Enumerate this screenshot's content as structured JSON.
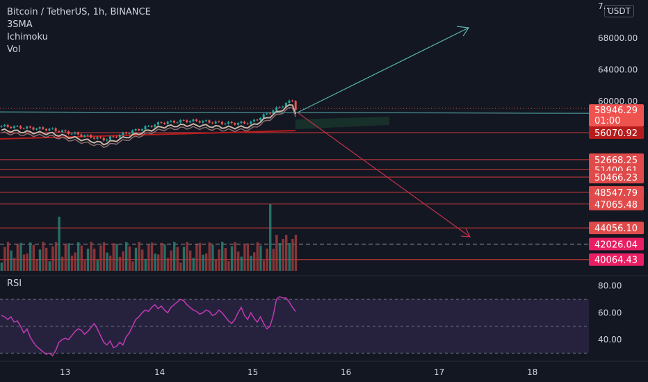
{
  "chart_data": {
    "type": "candlestick",
    "symbol": "Bitcoin / TetherUS, 1h, BINANCE",
    "indicators": [
      "3SMA",
      "Ichimoku",
      "Vol"
    ],
    "currency": "USDT",
    "price_axis_ticks": [
      "7…",
      "68000.00",
      "64000.00",
      "60000.00"
    ],
    "price_ylim": [
      38200,
      72800
    ],
    "current_price": "58946.29",
    "countdown": "01:00",
    "levels": [
      {
        "value": 56070.92,
        "label": "56070.92",
        "color": "#b71c1c"
      },
      {
        "value": 52668.25,
        "label": "52668.25",
        "color": "#e04a4a"
      },
      {
        "value": 51400.61,
        "label": "51400.61",
        "color": "#e04a4a"
      },
      {
        "value": 50466.23,
        "label": "50466.23",
        "color": "#e04a4a"
      },
      {
        "value": 48547.79,
        "label": "48547.79",
        "color": "#e04a4a"
      },
      {
        "value": 47065.48,
        "label": "47065.48",
        "color": "#e04a4a"
      },
      {
        "value": 44056.1,
        "label": "44056.10",
        "color": "#e04a4a"
      },
      {
        "value": 42026.04,
        "label": "42026.04",
        "color": "#e91e63"
      },
      {
        "value": 40064.43,
        "label": "40064.43",
        "color": "#e91e63"
      }
    ],
    "x_axis_ticks": [
      "13",
      "14",
      "15",
      "16",
      "17",
      "18"
    ],
    "rsi": {
      "title": "RSI",
      "ticks": [
        "80.00",
        "60.00",
        "40.00"
      ],
      "ylim": [
        25,
        86
      ],
      "band": [
        30,
        70
      ],
      "values": [
        58,
        57,
        55,
        57,
        53,
        54,
        50,
        45,
        48,
        42,
        38,
        35,
        33,
        31,
        29,
        30,
        28,
        32,
        38,
        40,
        41,
        40,
        43,
        46,
        48,
        47,
        44,
        46,
        49,
        52,
        48,
        43,
        38,
        36,
        39,
        34,
        35,
        38,
        36,
        42,
        45,
        50,
        55,
        57,
        60,
        62,
        61,
        64,
        66,
        63,
        65,
        62,
        60,
        64,
        66,
        68,
        70,
        69,
        66,
        64,
        62,
        61,
        59,
        60,
        62,
        61,
        58,
        59,
        62,
        60,
        57,
        54,
        52,
        55,
        60,
        64,
        58,
        55,
        60,
        56,
        53,
        57,
        52,
        48,
        50,
        58,
        70,
        72,
        71,
        71,
        68,
        64,
        61
      ]
    }
  }
}
